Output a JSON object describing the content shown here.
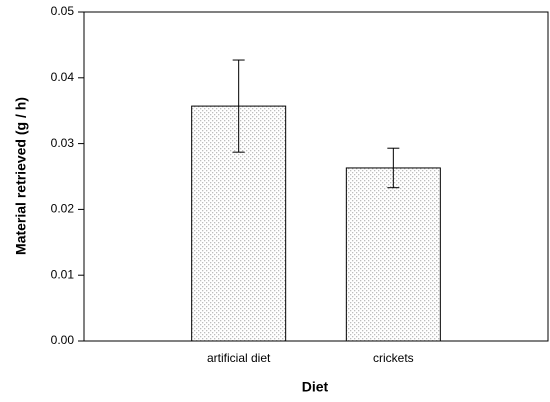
{
  "chart_data": {
    "type": "bar",
    "categories": [
      "artificial diet",
      "crickets"
    ],
    "values": [
      0.0357,
      0.0263
    ],
    "errors": [
      0.007,
      0.003
    ],
    "color": "#bdbdbd",
    "xlabel": "Diet",
    "ylabel": "Material retrieved (g / h)",
    "ylim": [
      0,
      0.05
    ],
    "yticks": [
      {
        "value": 0,
        "label": "0.00"
      },
      0.01,
      0.02,
      0.03,
      0.04,
      0.05
    ],
    "grid": false
  }
}
